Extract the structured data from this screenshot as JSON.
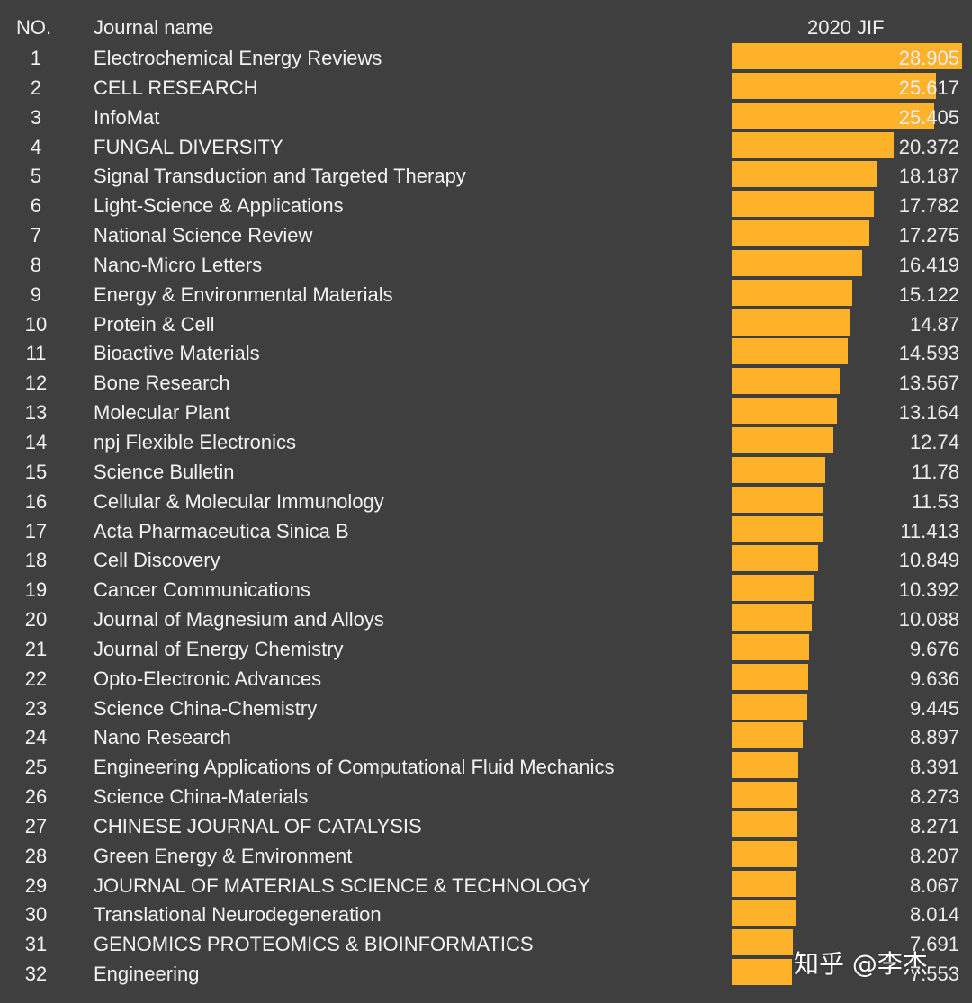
{
  "header": {
    "no": "NO.",
    "name": "Journal name",
    "jif": "2020 JIF"
  },
  "colors": {
    "background": "#3f3f3f",
    "bar": "#fdb22a",
    "text": "#f2f2f2"
  },
  "watermark": "知乎 @李杰",
  "chart_data": {
    "type": "bar",
    "orientation": "horizontal",
    "title": "2020 JIF",
    "xlabel": "",
    "ylabel": "Journal name",
    "categories": [
      "Electrochemical Energy Reviews",
      "CELL RESEARCH",
      "InfoMat",
      "FUNGAL DIVERSITY",
      "Signal Transduction and Targeted Therapy",
      "Light-Science & Applications",
      "National Science Review",
      "Nano-Micro Letters",
      "Energy & Environmental Materials",
      "Protein & Cell",
      "Bioactive Materials",
      "Bone Research",
      "Molecular Plant",
      "npj Flexible Electronics",
      "Science Bulletin",
      "Cellular & Molecular Immunology",
      "Acta Pharmaceutica Sinica B",
      "Cell Discovery",
      "Cancer Communications",
      "Journal of Magnesium and Alloys",
      "Journal of Energy Chemistry",
      "Opto-Electronic Advances",
      "Science China-Chemistry",
      "Nano Research",
      "Engineering Applications of Computational Fluid Mechanics",
      "Science China-Materials",
      "CHINESE JOURNAL OF CATALYSIS",
      "Green Energy & Environment",
      "JOURNAL OF MATERIALS SCIENCE & TECHNOLOGY",
      "Translational Neurodegeneration",
      "GENOMICS PROTEOMICS & BIOINFORMATICS",
      "Engineering"
    ],
    "values": [
      28.905,
      25.617,
      25.405,
      20.372,
      18.187,
      17.782,
      17.275,
      16.419,
      15.122,
      14.87,
      14.593,
      13.567,
      13.164,
      12.74,
      11.78,
      11.53,
      11.413,
      10.849,
      10.392,
      10.088,
      9.676,
      9.636,
      9.445,
      8.897,
      8.391,
      8.273,
      8.271,
      8.207,
      8.067,
      8.014,
      7.691,
      7.553
    ],
    "labels": [
      "28.905",
      "25.617",
      "25.405",
      "20.372",
      "18.187",
      "17.782",
      "17.275",
      "16.419",
      "15.122",
      "14.87",
      "14.593",
      "13.567",
      "13.164",
      "12.74",
      "11.78",
      "11.53",
      "11.413",
      "10.849",
      "10.392",
      "10.088",
      "9.676",
      "9.636",
      "9.445",
      "8.897",
      "8.391",
      "8.273",
      "8.271",
      "8.207",
      "8.067",
      "8.014",
      "7.691",
      "7.553"
    ],
    "xlim": [
      0,
      28.905
    ],
    "grid": false,
    "legend": "none"
  }
}
